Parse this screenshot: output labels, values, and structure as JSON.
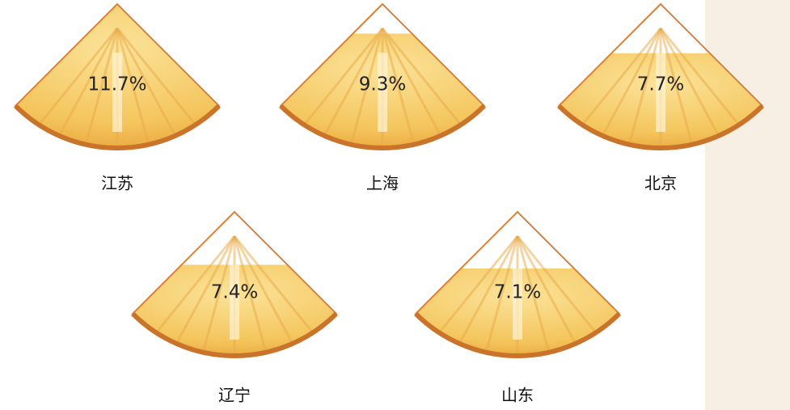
{
  "chart_data": {
    "type": "pictogram",
    "categories": [
      "江苏",
      "上海",
      "北京",
      "辽宁",
      "山东"
    ],
    "values": [
      11.7,
      9.3,
      7.7,
      7.4,
      7.1
    ],
    "value_labels": [
      "11.7%",
      "9.3%",
      "7.7%",
      "7.4%",
      "7.1%"
    ],
    "ylim": [
      0,
      11.7
    ],
    "color": "#f4c55c"
  }
}
